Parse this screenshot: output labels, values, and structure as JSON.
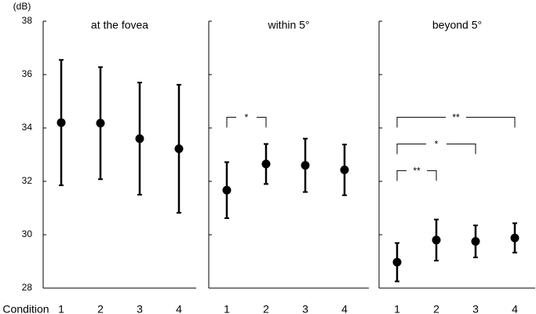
{
  "chart_data": [
    {
      "type": "errorbar",
      "title": "at the fovea",
      "y_label": "(dB)",
      "x_label": "Condition",
      "categories": [
        "1",
        "2",
        "3",
        "4"
      ],
      "values": [
        34.2,
        34.18,
        33.6,
        33.22
      ],
      "errors": [
        2.35,
        2.1,
        2.1,
        2.4
      ],
      "color": "#000000",
      "ylim": [
        28,
        38
      ],
      "yticks": [
        28,
        30,
        32,
        34,
        36,
        38
      ],
      "ytick_labels": true,
      "annotations": []
    },
    {
      "type": "errorbar",
      "title": "within 5°",
      "categories": [
        "1",
        "2",
        "3",
        "4"
      ],
      "values": [
        31.67,
        32.65,
        32.6,
        32.43
      ],
      "errors": [
        1.05,
        0.75,
        1.0,
        0.95
      ],
      "color": "#000000",
      "ylim": [
        28,
        38
      ],
      "yticks": [
        28,
        30,
        32,
        34,
        36,
        38
      ],
      "ytick_labels": false,
      "annotations": [
        {
          "from": "1",
          "to": "2",
          "y": 34.4,
          "label": "*"
        }
      ]
    },
    {
      "type": "errorbar",
      "title": "beyond 5°",
      "categories": [
        "1",
        "2",
        "3",
        "4"
      ],
      "values": [
        28.97,
        29.8,
        29.75,
        29.88
      ],
      "errors": [
        0.72,
        0.77,
        0.6,
        0.55
      ],
      "color": "#000000",
      "ylim": [
        28,
        38
      ],
      "yticks": [
        28,
        30,
        32,
        34,
        36,
        38
      ],
      "ytick_labels": false,
      "annotations": [
        {
          "from": "1",
          "to": "4",
          "y": 34.4,
          "label": "**"
        },
        {
          "from": "1",
          "to": "3",
          "y": 33.4,
          "label": "*"
        },
        {
          "from": "1",
          "to": "2",
          "y": 32.4,
          "label": "**"
        }
      ]
    }
  ]
}
